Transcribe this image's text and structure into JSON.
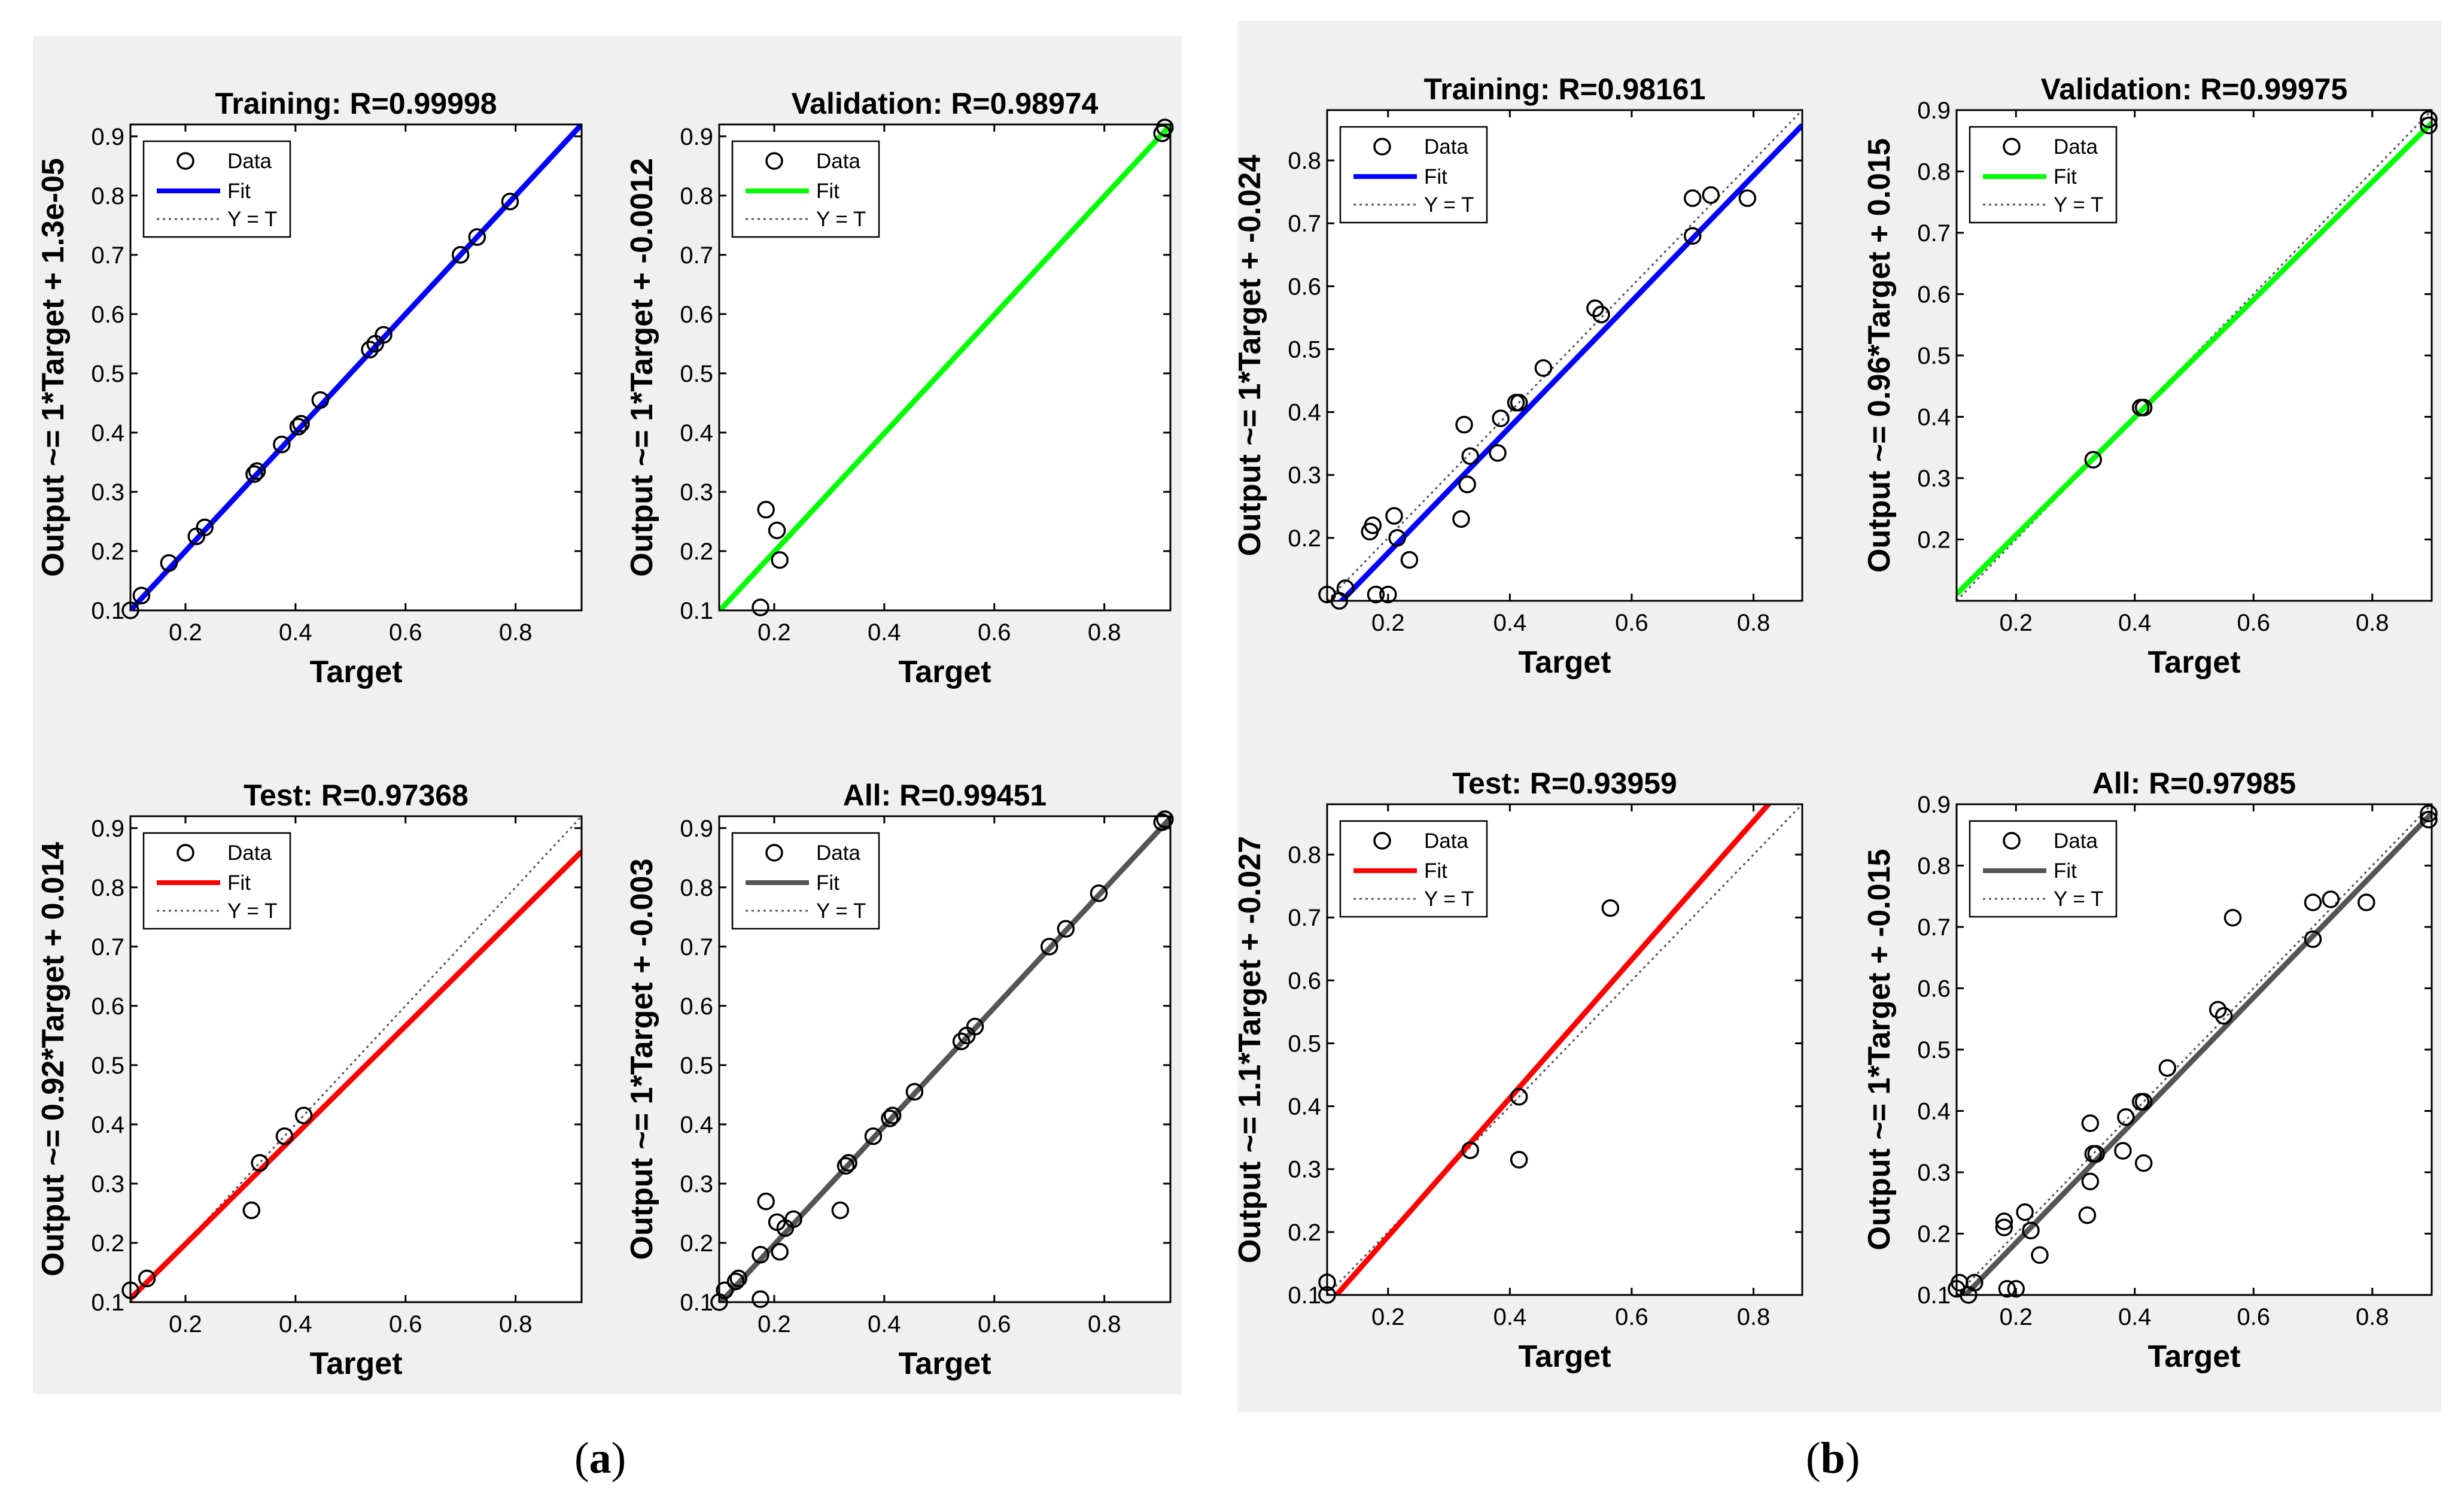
{
  "figure": {
    "label_a": "a",
    "label_b": "b"
  },
  "colors": {
    "panel_bg": "#f0f0f0",
    "training": "#0000ff",
    "validation": "#00ff00",
    "test": "#ff0000",
    "all": "#555555"
  },
  "chart_data": [
    {
      "id": "a-training",
      "type": "scatter",
      "title": "Training: R=0.99998",
      "xlabel": "Target",
      "ylabel": "Output ~= 1*Target + 1.3e-05",
      "xlim": [
        0.1,
        0.92
      ],
      "ylim": [
        0.1,
        0.92
      ],
      "xticks": [
        0.2,
        0.4,
        0.6,
        0.8
      ],
      "yticks": [
        0.1,
        0.2,
        0.3,
        0.4,
        0.5,
        0.6,
        0.7,
        0.8,
        0.9
      ],
      "fit": {
        "slope": 1.0,
        "intercept": 1.3e-05,
        "color": "#0000ff"
      },
      "legend": [
        "Data",
        "Fit",
        "Y = T"
      ],
      "points": [
        [
          0.1,
          0.1
        ],
        [
          0.12,
          0.125
        ],
        [
          0.17,
          0.18
        ],
        [
          0.22,
          0.225
        ],
        [
          0.235,
          0.24
        ],
        [
          0.325,
          0.33
        ],
        [
          0.33,
          0.335
        ],
        [
          0.375,
          0.38
        ],
        [
          0.405,
          0.41
        ],
        [
          0.41,
          0.415
        ],
        [
          0.445,
          0.455
        ],
        [
          0.535,
          0.54
        ],
        [
          0.545,
          0.55
        ],
        [
          0.56,
          0.565
        ],
        [
          0.7,
          0.7
        ],
        [
          0.73,
          0.73
        ],
        [
          0.79,
          0.79
        ]
      ]
    },
    {
      "id": "a-validation",
      "type": "scatter",
      "title": "Validation: R=0.98974",
      "xlabel": "Target",
      "ylabel": "Output ~= 1*Target + -0.0012",
      "xlim": [
        0.1,
        0.92
      ],
      "ylim": [
        0.1,
        0.92
      ],
      "xticks": [
        0.2,
        0.4,
        0.6,
        0.8
      ],
      "yticks": [
        0.1,
        0.2,
        0.3,
        0.4,
        0.5,
        0.6,
        0.7,
        0.8,
        0.9
      ],
      "fit": {
        "slope": 1.0,
        "intercept": -0.0012,
        "color": "#00ff00"
      },
      "legend": [
        "Data",
        "Fit",
        "Y = T"
      ],
      "points": [
        [
          0.175,
          0.105
        ],
        [
          0.185,
          0.27
        ],
        [
          0.205,
          0.235
        ],
        [
          0.21,
          0.185
        ],
        [
          0.905,
          0.905
        ],
        [
          0.91,
          0.915
        ]
      ]
    },
    {
      "id": "a-test",
      "type": "scatter",
      "title": "Test: R=0.97368",
      "xlabel": "Target",
      "ylabel": "Output ~= 0.92*Target + 0.014",
      "xlim": [
        0.1,
        0.92
      ],
      "ylim": [
        0.1,
        0.92
      ],
      "xticks": [
        0.2,
        0.4,
        0.6,
        0.8
      ],
      "yticks": [
        0.1,
        0.2,
        0.3,
        0.4,
        0.5,
        0.6,
        0.7,
        0.8,
        0.9
      ],
      "fit": {
        "slope": 0.92,
        "intercept": 0.014,
        "color": "#ff0000"
      },
      "legend": [
        "Data",
        "Fit",
        "Y = T"
      ],
      "points": [
        [
          0.1,
          0.12
        ],
        [
          0.13,
          0.14
        ],
        [
          0.32,
          0.255
        ],
        [
          0.335,
          0.335
        ],
        [
          0.38,
          0.38
        ],
        [
          0.415,
          0.415
        ]
      ]
    },
    {
      "id": "a-all",
      "type": "scatter",
      "title": "All: R=0.99451",
      "xlabel": "Target",
      "ylabel": "Output ~= 1*Target + -0.003",
      "xlim": [
        0.1,
        0.92
      ],
      "ylim": [
        0.1,
        0.92
      ],
      "xticks": [
        0.2,
        0.4,
        0.6,
        0.8
      ],
      "yticks": [
        0.1,
        0.2,
        0.3,
        0.4,
        0.5,
        0.6,
        0.7,
        0.8,
        0.9
      ],
      "fit": {
        "slope": 1.0,
        "intercept": -0.003,
        "color": "#555555"
      },
      "legend": [
        "Data",
        "Fit",
        "Y = T"
      ],
      "points": [
        [
          0.1,
          0.1
        ],
        [
          0.11,
          0.12
        ],
        [
          0.13,
          0.135
        ],
        [
          0.135,
          0.14
        ],
        [
          0.175,
          0.105
        ],
        [
          0.175,
          0.18
        ],
        [
          0.185,
          0.27
        ],
        [
          0.205,
          0.235
        ],
        [
          0.21,
          0.185
        ],
        [
          0.22,
          0.225
        ],
        [
          0.235,
          0.24
        ],
        [
          0.32,
          0.255
        ],
        [
          0.33,
          0.33
        ],
        [
          0.335,
          0.335
        ],
        [
          0.38,
          0.38
        ],
        [
          0.41,
          0.41
        ],
        [
          0.415,
          0.415
        ],
        [
          0.455,
          0.455
        ],
        [
          0.54,
          0.54
        ],
        [
          0.55,
          0.55
        ],
        [
          0.565,
          0.565
        ],
        [
          0.7,
          0.7
        ],
        [
          0.73,
          0.73
        ],
        [
          0.79,
          0.79
        ],
        [
          0.905,
          0.91
        ],
        [
          0.91,
          0.915
        ]
      ]
    },
    {
      "id": "b-training",
      "type": "scatter",
      "title": "Training: R=0.98161",
      "xlabel": "Target",
      "ylabel": "Output ~= 1*Target + -0.024",
      "xlim": [
        0.1,
        0.88
      ],
      "ylim": [
        0.1,
        0.88
      ],
      "xticks": [
        0.2,
        0.4,
        0.6,
        0.8
      ],
      "yticks": [
        0.2,
        0.3,
        0.4,
        0.5,
        0.6,
        0.7,
        0.8
      ],
      "fit": {
        "slope": 1.0,
        "intercept": -0.024,
        "color": "#0000ff"
      },
      "legend": [
        "Data",
        "Fit",
        "Y = T"
      ],
      "points": [
        [
          0.1,
          0.11
        ],
        [
          0.12,
          0.1
        ],
        [
          0.13,
          0.12
        ],
        [
          0.17,
          0.21
        ],
        [
          0.175,
          0.22
        ],
        [
          0.18,
          0.11
        ],
        [
          0.2,
          0.11
        ],
        [
          0.21,
          0.235
        ],
        [
          0.215,
          0.2
        ],
        [
          0.235,
          0.165
        ],
        [
          0.32,
          0.23
        ],
        [
          0.325,
          0.38
        ],
        [
          0.33,
          0.285
        ],
        [
          0.335,
          0.33
        ],
        [
          0.38,
          0.335
        ],
        [
          0.385,
          0.39
        ],
        [
          0.41,
          0.415
        ],
        [
          0.415,
          0.415
        ],
        [
          0.455,
          0.47
        ],
        [
          0.54,
          0.565
        ],
        [
          0.55,
          0.555
        ],
        [
          0.7,
          0.74
        ],
        [
          0.7,
          0.68
        ],
        [
          0.73,
          0.745
        ],
        [
          0.79,
          0.74
        ]
      ]
    },
    {
      "id": "b-validation",
      "type": "scatter",
      "title": "Validation: R=0.99975",
      "xlabel": "Target",
      "ylabel": "Output ~= 0.96*Target + 0.015",
      "xlim": [
        0.1,
        0.9
      ],
      "ylim": [
        0.1,
        0.9
      ],
      "xticks": [
        0.2,
        0.4,
        0.6,
        0.8
      ],
      "yticks": [
        0.2,
        0.3,
        0.4,
        0.5,
        0.6,
        0.7,
        0.8,
        0.9
      ],
      "fit": {
        "slope": 0.96,
        "intercept": 0.015,
        "color": "#00ff00"
      },
      "legend": [
        "Data",
        "Fit",
        "Y = T"
      ],
      "points": [
        [
          0.33,
          0.33
        ],
        [
          0.41,
          0.415
        ],
        [
          0.415,
          0.415
        ],
        [
          0.895,
          0.875
        ],
        [
          0.895,
          0.885
        ]
      ]
    },
    {
      "id": "b-test",
      "type": "scatter",
      "title": "Test: R=0.93959",
      "xlabel": "Target",
      "ylabel": "Output ~= 1.1*Target + -0.027",
      "xlim": [
        0.1,
        0.88
      ],
      "ylim": [
        0.1,
        0.88
      ],
      "xticks": [
        0.2,
        0.4,
        0.6,
        0.8
      ],
      "yticks": [
        0.1,
        0.2,
        0.3,
        0.4,
        0.5,
        0.6,
        0.7,
        0.8
      ],
      "fit": {
        "slope": 1.1,
        "intercept": -0.027,
        "color": "#ff0000"
      },
      "legend": [
        "Data",
        "Fit",
        "Y = T"
      ],
      "points": [
        [
          0.1,
          0.1
        ],
        [
          0.1,
          0.12
        ],
        [
          0.335,
          0.33
        ],
        [
          0.415,
          0.415
        ],
        [
          0.415,
          0.315
        ],
        [
          0.565,
          0.715
        ]
      ]
    },
    {
      "id": "b-all",
      "type": "scatter",
      "title": "All: R=0.97985",
      "xlabel": "Target",
      "ylabel": "Output ~= 1*Target + -0.015",
      "xlim": [
        0.1,
        0.9
      ],
      "ylim": [
        0.1,
        0.9
      ],
      "xticks": [
        0.2,
        0.4,
        0.6,
        0.8
      ],
      "yticks": [
        0.1,
        0.2,
        0.3,
        0.4,
        0.5,
        0.6,
        0.7,
        0.8,
        0.9
      ],
      "fit": {
        "slope": 1.0,
        "intercept": -0.015,
        "color": "#555555"
      },
      "legend": [
        "Data",
        "Fit",
        "Y = T"
      ],
      "points": [
        [
          0.1,
          0.11
        ],
        [
          0.105,
          0.12
        ],
        [
          0.12,
          0.1
        ],
        [
          0.13,
          0.12
        ],
        [
          0.18,
          0.21
        ],
        [
          0.18,
          0.22
        ],
        [
          0.185,
          0.11
        ],
        [
          0.2,
          0.11
        ],
        [
          0.215,
          0.235
        ],
        [
          0.225,
          0.205
        ],
        [
          0.24,
          0.165
        ],
        [
          0.32,
          0.23
        ],
        [
          0.325,
          0.38
        ],
        [
          0.325,
          0.285
        ],
        [
          0.33,
          0.33
        ],
        [
          0.335,
          0.33
        ],
        [
          0.38,
          0.335
        ],
        [
          0.385,
          0.39
        ],
        [
          0.41,
          0.415
        ],
        [
          0.415,
          0.415
        ],
        [
          0.415,
          0.315
        ],
        [
          0.455,
          0.47
        ],
        [
          0.54,
          0.565
        ],
        [
          0.55,
          0.555
        ],
        [
          0.565,
          0.715
        ],
        [
          0.7,
          0.74
        ],
        [
          0.7,
          0.68
        ],
        [
          0.73,
          0.745
        ],
        [
          0.79,
          0.74
        ],
        [
          0.895,
          0.875
        ],
        [
          0.895,
          0.885
        ]
      ]
    }
  ]
}
